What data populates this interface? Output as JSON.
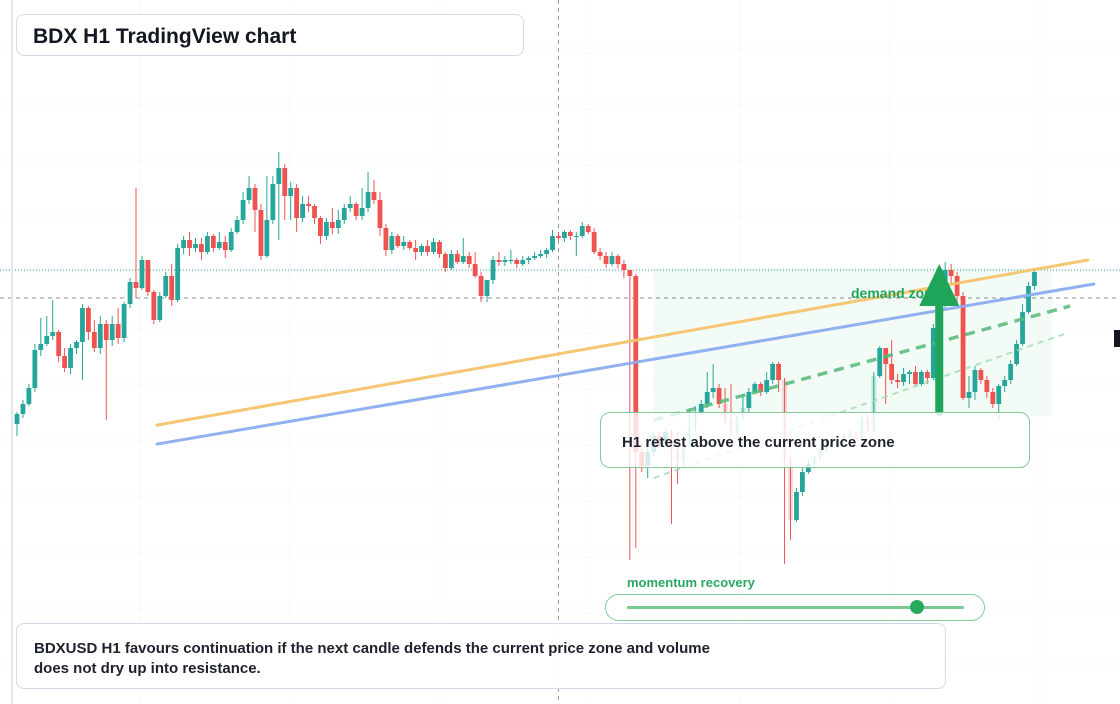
{
  "title": "BDX H1 TradingView chart",
  "annotations": {
    "retest": "H1 retest above the current price zone",
    "demand": "demand zone",
    "momentum": "momentum recovery",
    "note": "BDXUSD H1 favours continuation if the next candle defends the current price zone and volume does not dry up into resistance."
  },
  "momentum_slider": {
    "value": 0.86
  },
  "colors": {
    "up": "#26a69a",
    "down": "#ef5350",
    "accent_green": "#1fa55a",
    "resistance_line": "#f5c36b",
    "trend_line": "#8aacef",
    "dashed_channel": "#56b97a",
    "grid": "#e6e9ef",
    "crosshair": "#9598a1"
  },
  "chart_data": {
    "type": "candlestick",
    "symbol": "BDXUSD",
    "timeframe": "H1",
    "ylim": [
      0,
      100
    ],
    "current_price": 60.5,
    "dotted_level": 67.5,
    "crosshair_index": 91,
    "candles": [
      [
        29.0,
        31.5,
        26.0,
        32.0
      ],
      [
        31.5,
        34.0,
        30.5,
        35.0
      ],
      [
        34.0,
        38.0,
        33.5,
        39.0
      ],
      [
        38.0,
        47.5,
        37.0,
        49.0
      ],
      [
        47.5,
        49.0,
        46.0,
        55.5
      ],
      [
        49.0,
        51.0,
        48.5,
        56.0
      ],
      [
        51.0,
        52.0,
        50.0,
        60.0
      ],
      [
        52.0,
        46.0,
        44.5,
        52.5
      ],
      [
        46.0,
        43.0,
        42.0,
        48.0
      ],
      [
        43.0,
        48.0,
        41.5,
        49.0
      ],
      [
        48.0,
        49.5,
        46.5,
        50.0
      ],
      [
        49.5,
        58.0,
        40.0,
        59.0
      ],
      [
        58.0,
        52.0,
        50.0,
        58.5
      ],
      [
        52.0,
        48.0,
        47.0,
        55.0
      ],
      [
        48.0,
        54.0,
        46.5,
        56.0
      ],
      [
        54.0,
        50.0,
        30.0,
        55.0
      ],
      [
        50.0,
        54.0,
        48.5,
        56.0
      ],
      [
        54.0,
        50.5,
        49.0,
        58.0
      ],
      [
        50.5,
        59.0,
        49.5,
        59.5
      ],
      [
        59.0,
        64.5,
        58.0,
        65.5
      ],
      [
        64.5,
        63.0,
        60.5,
        88.0
      ],
      [
        63.0,
        70.0,
        62.5,
        71.0
      ],
      [
        70.0,
        62.0,
        61.0,
        70.0
      ],
      [
        62.0,
        55.0,
        54.0,
        62.5
      ],
      [
        55.0,
        61.0,
        54.5,
        62.0
      ],
      [
        61.0,
        66.0,
        60.5,
        67.0
      ],
      [
        66.0,
        60.0,
        58.5,
        69.0
      ],
      [
        60.0,
        73.0,
        59.5,
        74.0
      ],
      [
        73.0,
        75.0,
        71.5,
        76.0
      ],
      [
        75.0,
        73.0,
        71.0,
        77.0
      ],
      [
        73.0,
        74.0,
        72.0,
        75.5
      ],
      [
        74.0,
        72.0,
        70.0,
        75.5
      ],
      [
        72.0,
        76.0,
        71.5,
        77.0
      ],
      [
        76.0,
        73.0,
        72.0,
        76.5
      ],
      [
        73.0,
        74.5,
        72.5,
        77.0
      ],
      [
        74.5,
        72.5,
        70.5,
        76.0
      ],
      [
        72.5,
        77.0,
        72.0,
        78.0
      ],
      [
        77.0,
        80.0,
        76.5,
        81.0
      ],
      [
        80.0,
        85.0,
        79.0,
        87.0
      ],
      [
        85.0,
        88.0,
        84.0,
        91.0
      ],
      [
        88.0,
        82.5,
        77.0,
        89.0
      ],
      [
        82.5,
        71.0,
        70.0,
        84.0
      ],
      [
        71.0,
        80.0,
        70.5,
        91.0
      ],
      [
        80.0,
        89.0,
        79.0,
        91.0
      ],
      [
        89.0,
        93.0,
        75.0,
        97.0
      ],
      [
        93.0,
        86.0,
        80.0,
        94.0
      ],
      [
        86.0,
        88.0,
        80.0,
        89.5
      ],
      [
        88.0,
        80.5,
        77.0,
        89.0
      ],
      [
        80.5,
        84.0,
        79.5,
        86.0
      ],
      [
        84.0,
        83.5,
        82.0,
        86.0
      ],
      [
        83.5,
        80.5,
        79.0,
        84.0
      ],
      [
        80.5,
        76.0,
        74.0,
        81.0
      ],
      [
        76.0,
        79.5,
        75.0,
        80.5
      ],
      [
        79.5,
        78.0,
        76.5,
        83.0
      ],
      [
        78.0,
        80.0,
        76.5,
        82.5
      ],
      [
        80.0,
        83.0,
        79.0,
        84.0
      ],
      [
        83.0,
        84.0,
        82.0,
        86.0
      ],
      [
        84.0,
        81.0,
        80.0,
        84.5
      ],
      [
        81.0,
        83.0,
        80.0,
        88.0
      ],
      [
        83.0,
        87.0,
        82.0,
        92.0
      ],
      [
        87.0,
        85.0,
        84.0,
        90.0
      ],
      [
        85.0,
        78.0,
        76.0,
        87.0
      ],
      [
        78.0,
        72.5,
        71.0,
        79.0
      ],
      [
        72.5,
        76.0,
        71.5,
        77.0
      ],
      [
        76.0,
        73.5,
        73.0,
        76.5
      ],
      [
        73.5,
        74.5,
        72.5,
        76.0
      ],
      [
        74.5,
        73.0,
        72.5,
        75.0
      ],
      [
        73.0,
        72.0,
        70.0,
        75.0
      ],
      [
        72.0,
        73.5,
        71.0,
        74.0
      ],
      [
        73.5,
        72.0,
        71.0,
        75.0
      ],
      [
        72.0,
        74.5,
        71.5,
        75.5
      ],
      [
        74.5,
        71.5,
        70.5,
        75.0
      ],
      [
        71.5,
        68.0,
        67.0,
        72.0
      ],
      [
        68.0,
        71.5,
        67.5,
        72.5
      ],
      [
        71.5,
        69.5,
        69.0,
        72.5
      ],
      [
        69.5,
        71.0,
        69.0,
        75.5
      ],
      [
        71.0,
        69.0,
        68.0,
        72.0
      ],
      [
        69.0,
        66.0,
        65.5,
        72.0
      ],
      [
        66.0,
        61.0,
        59.5,
        67.0
      ],
      [
        61.0,
        65.0,
        59.5,
        65.0
      ],
      [
        65.0,
        70.0,
        64.0,
        71.0
      ],
      [
        70.0,
        69.5,
        68.5,
        72.0
      ],
      [
        69.5,
        70.0,
        68.5,
        71.0
      ],
      [
        70.0,
        70.0,
        69.0,
        72.5
      ],
      [
        70.0,
        69.0,
        68.0,
        70.5
      ],
      [
        69.0,
        70.0,
        68.5,
        71.0
      ],
      [
        70.0,
        70.5,
        69.0,
        71.0
      ],
      [
        70.5,
        71.0,
        70.0,
        72.0
      ],
      [
        71.0,
        71.5,
        70.5,
        72.5
      ],
      [
        71.5,
        72.5,
        70.5,
        73.0
      ],
      [
        72.5,
        76.0,
        72.0,
        77.5
      ],
      [
        76.0,
        75.5,
        75.0,
        77.0
      ],
      [
        75.5,
        77.0,
        74.5,
        77.5
      ],
      [
        77.0,
        76.0,
        75.0,
        77.5
      ],
      [
        76.0,
        76.0,
        71.0,
        77.0
      ],
      [
        76.0,
        78.5,
        75.5,
        79.5
      ],
      [
        78.5,
        77.0,
        76.5,
        79.0
      ],
      [
        77.0,
        72.0,
        71.5,
        78.0
      ],
      [
        72.0,
        71.0,
        70.0,
        73.0
      ],
      [
        71.0,
        69.0,
        68.0,
        72.0
      ],
      [
        69.0,
        71.0,
        68.5,
        72.0
      ],
      [
        71.0,
        69.0,
        68.0,
        71.5
      ],
      [
        69.0,
        67.5,
        65.5,
        70.0
      ],
      [
        67.5,
        66.0,
        -5.0,
        67.5
      ],
      [
        66.0,
        22.0,
        -2.0,
        66.5
      ],
      [
        22.0,
        18.5,
        17.0,
        24.0
      ],
      [
        18.5,
        22.0,
        15.5,
        24.5
      ],
      [
        22.0,
        26.0,
        21.0,
        27.0
      ],
      [
        26.0,
        24.0,
        23.0,
        27.0
      ],
      [
        24.0,
        27.0,
        23.5,
        28.0
      ],
      [
        27.0,
        22.0,
        4.0,
        27.5
      ],
      [
        22.0,
        20.0,
        14.0,
        27.0
      ],
      [
        20.0,
        24.0,
        18.0,
        26.0
      ],
      [
        24.0,
        28.0,
        23.0,
        33.0
      ],
      [
        28.0,
        32.0,
        27.0,
        33.5
      ],
      [
        32.0,
        34.0,
        31.0,
        35.0
      ],
      [
        34.0,
        37.0,
        33.0,
        42.0
      ],
      [
        37.0,
        38.0,
        35.5,
        44.0
      ],
      [
        38.0,
        34.0,
        33.0,
        39.0
      ],
      [
        34.0,
        30.0,
        29.0,
        38.0
      ],
      [
        30.0,
        27.0,
        26.0,
        39.0
      ],
      [
        27.0,
        31.0,
        26.5,
        31.0
      ],
      [
        31.0,
        33.0,
        30.0,
        36.5
      ],
      [
        33.0,
        37.0,
        32.0,
        38.0
      ],
      [
        37.0,
        39.0,
        36.5,
        39.5
      ],
      [
        39.0,
        37.0,
        36.0,
        39.5
      ],
      [
        37.0,
        40.0,
        36.5,
        42.0
      ],
      [
        40.0,
        44.0,
        39.0,
        44.5
      ],
      [
        44.0,
        40.0,
        37.0,
        44.5
      ],
      [
        40.0,
        20.0,
        -6.0,
        40.5
      ],
      [
        20.0,
        5.0,
        0.0,
        21.0
      ],
      [
        5.0,
        12.0,
        4.5,
        13.0
      ],
      [
        12.0,
        17.0,
        11.0,
        18.0
      ],
      [
        17.0,
        19.0,
        16.5,
        20.0
      ],
      [
        19.0,
        20.5,
        18.0,
        21.0
      ],
      [
        20.5,
        22.5,
        20.0,
        23.0
      ],
      [
        22.5,
        23.5,
        22.0,
        25.0
      ],
      [
        23.5,
        24.5,
        23.0,
        25.5
      ],
      [
        24.5,
        23.5,
        23.0,
        25.0
      ],
      [
        23.5,
        26.0,
        23.0,
        26.5
      ],
      [
        26.0,
        26.5,
        25.5,
        27.5
      ],
      [
        26.5,
        26.0,
        25.0,
        27.0
      ],
      [
        26.0,
        30.0,
        25.5,
        31.0
      ],
      [
        30.0,
        27.5,
        27.0,
        31.0
      ],
      [
        27.5,
        41.0,
        27.0,
        42.0
      ],
      [
        41.0,
        48.0,
        40.5,
        48.5
      ],
      [
        48.0,
        44.0,
        34.0,
        48.0
      ],
      [
        44.0,
        40.0,
        39.0,
        50.0
      ],
      [
        40.0,
        39.5,
        38.0,
        41.5
      ],
      [
        39.5,
        41.5,
        38.5,
        43.0
      ],
      [
        41.5,
        42.0,
        39.0,
        42.5
      ],
      [
        42.0,
        39.0,
        38.5,
        43.5
      ],
      [
        39.0,
        42.0,
        38.5,
        42.5
      ],
      [
        42.0,
        40.5,
        39.0,
        42.5
      ],
      [
        40.5,
        53.0,
        40.0,
        54.0
      ],
      [
        53.0,
        59.5,
        52.5,
        60.5
      ],
      [
        59.5,
        67.5,
        58.0,
        69.5
      ],
      [
        67.5,
        66.0,
        64.0,
        69.0
      ],
      [
        66.0,
        61.0,
        59.0,
        67.0
      ],
      [
        61.0,
        35.5,
        35.0,
        62.0
      ],
      [
        35.5,
        37.0,
        33.0,
        41.0
      ],
      [
        37.0,
        42.5,
        35.0,
        43.5
      ],
      [
        42.5,
        40.0,
        39.0,
        43.0
      ],
      [
        40.0,
        37.0,
        35.5,
        41.0
      ],
      [
        37.0,
        34.0,
        33.0,
        38.0
      ],
      [
        34.0,
        38.5,
        30.0,
        39.0
      ],
      [
        38.5,
        40.0,
        37.0,
        41.0
      ],
      [
        40.0,
        44.0,
        39.0,
        45.0
      ],
      [
        44.0,
        49.0,
        43.5,
        50.0
      ],
      [
        49.0,
        57.0,
        48.5,
        59.0
      ],
      [
        57.0,
        63.5,
        56.5,
        64.5
      ],
      [
        63.5,
        67.0,
        62.5,
        68.0
      ]
    ],
    "lines": [
      {
        "name": "resistance",
        "points": [
          [
            -4,
            21.0
          ],
          [
            0,
            22.5
          ],
          [
            180,
            70.0
          ]
        ],
        "style": "solid"
      },
      {
        "name": "trendline",
        "points": [
          [
            -4,
            17.0
          ],
          [
            0,
            18.0
          ],
          [
            181,
            64.0
          ]
        ],
        "style": "solid"
      }
    ],
    "dashed_channel": {
      "upper": [
        [
          107,
          30.0
        ],
        [
          177,
          58.5
        ]
      ],
      "lower": [
        [
          107,
          15.5
        ],
        [
          176,
          51.5
        ]
      ]
    },
    "demand_zone": {
      "x_range": [
        107,
        174
      ],
      "y_range": [
        31.0,
        68.0
      ]
    },
    "arrow": {
      "x": 155,
      "from": 31.5,
      "to": 69.0
    }
  }
}
